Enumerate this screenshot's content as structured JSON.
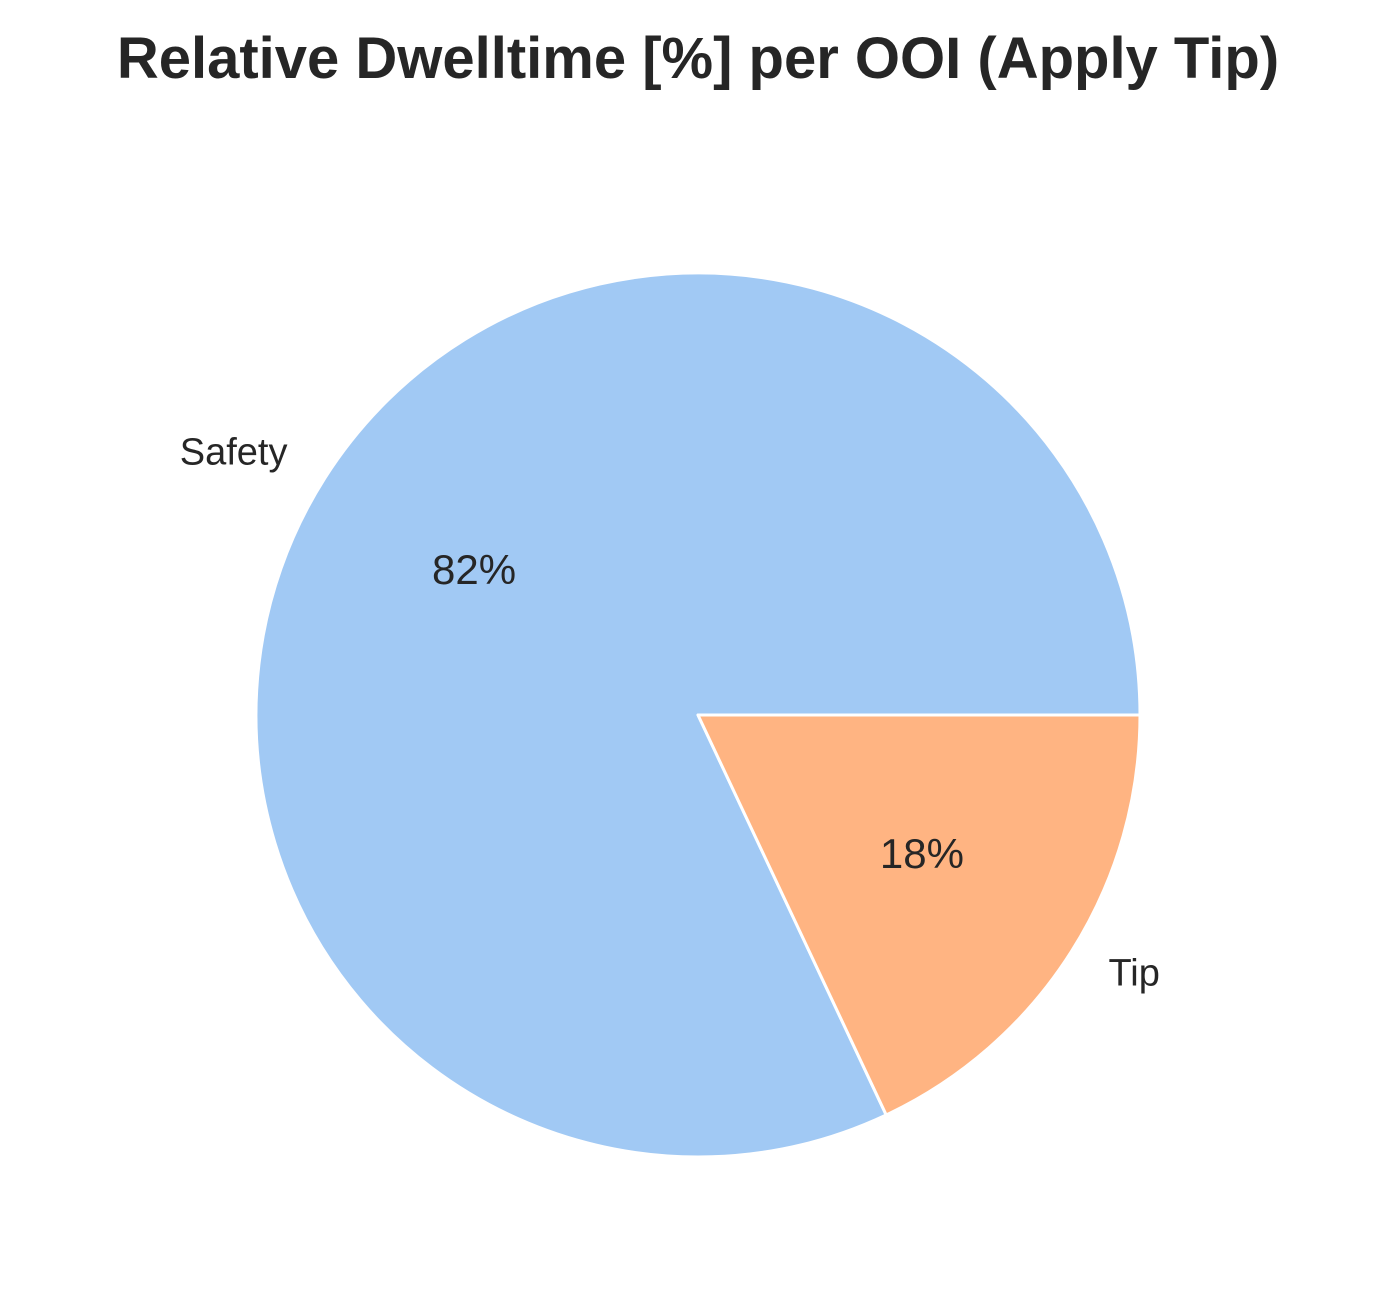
{
  "chart_data": {
    "type": "pie",
    "title": "Relative Dwelltime [%] per OOI (Apply Tip)",
    "slices": [
      {
        "label": "Safety",
        "value": 82,
        "pct_label": "82%",
        "color": "#a1c9f4"
      },
      {
        "label": "Tip",
        "value": 18,
        "pct_label": "18%",
        "color": "#ffb482"
      }
    ],
    "legend": "none",
    "edge_color": "#ffffff"
  }
}
